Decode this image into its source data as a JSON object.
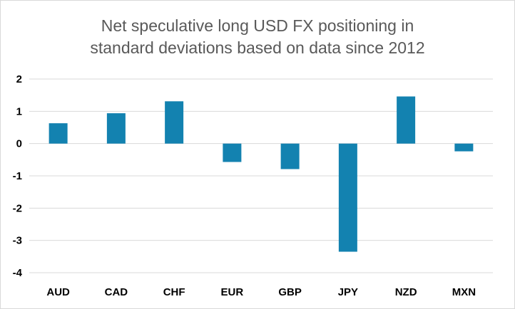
{
  "chart_data": {
    "type": "bar",
    "title_lines": [
      "Net speculative long USD FX positioning in",
      "standard deviations based on data since 2012"
    ],
    "categories": [
      "AUD",
      "CAD",
      "CHF",
      "EUR",
      "GBP",
      "JPY",
      "NZD",
      "MXN"
    ],
    "series": [
      {
        "values": [
          0.63,
          0.94,
          1.31,
          -0.57,
          -0.79,
          -3.35,
          1.46,
          -0.24
        ],
        "color": "#1382b0"
      }
    ],
    "ylim": [
      -4,
      2
    ],
    "yticks": [
      2,
      1,
      0,
      -1,
      -2,
      -3,
      -4
    ],
    "grid": true,
    "legend": "none"
  }
}
